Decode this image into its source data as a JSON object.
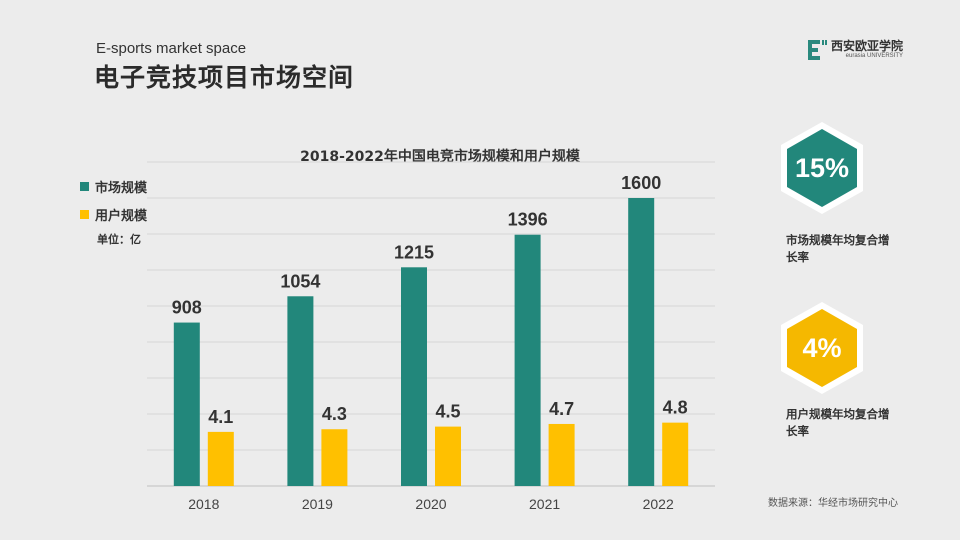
{
  "header": {
    "subtitle_en": "E-sports market space",
    "title_zh": "电子竞技项目市场空间"
  },
  "logo": {
    "name_cn": "西安欧亚学院",
    "name_en": "eurasia UNIVERSITY",
    "color": "#2a8a7e"
  },
  "chart_data": {
    "type": "bar",
    "title": "2018-2022年中国电竞市场规模和用户规模",
    "categories": [
      "2018",
      "2019",
      "2020",
      "2021",
      "2022"
    ],
    "series": [
      {
        "name": "市场规模",
        "values": [
          908,
          1054,
          1215,
          1396,
          1600
        ],
        "labels": [
          "908",
          "1054",
          "1215",
          "1396",
          "1600"
        ],
        "color": "#22877b"
      },
      {
        "name": "用户规模",
        "values": [
          4.1,
          4.3,
          4.5,
          4.7,
          4.8
        ],
        "labels": [
          "4.1",
          "4.3",
          "4.5",
          "4.7",
          "4.8"
        ],
        "color": "#ffc000"
      }
    ],
    "unit_label": "单位：亿",
    "ylim": [
      0,
      1800
    ],
    "grid": true,
    "legend": "top-left"
  },
  "kpis": [
    {
      "value": "15%",
      "label": "市场规模年均复合增长率",
      "color": "#22877b"
    },
    {
      "value": "4%",
      "label": "用户规模年均复合增长率",
      "color": "#f5b800"
    }
  ],
  "source": "数据来源：华经市场研究中心"
}
